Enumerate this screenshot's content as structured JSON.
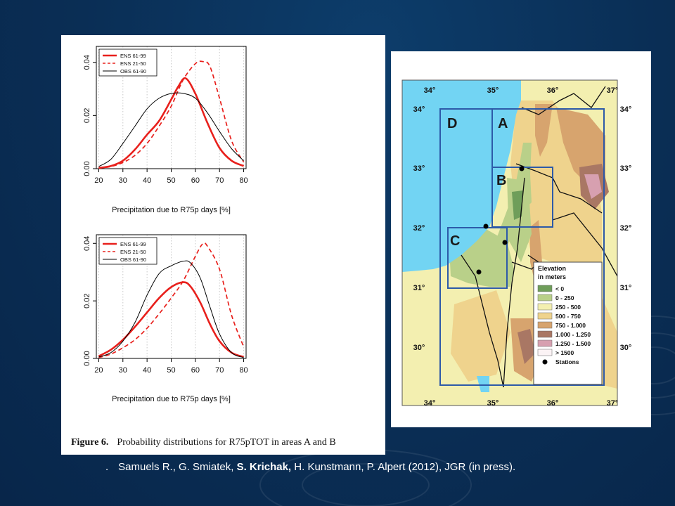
{
  "figure_caption": {
    "label": "Figure 6.",
    "text": "Probability distributions for R75pTOT in areas A and B"
  },
  "citation": {
    "dot": ".",
    "before": "Samuels R., G. Smiatek, ",
    "bold": "S. Krichak,",
    "after": " H. Kunstmann, P. Alpert (2012), JGR (in press)."
  },
  "chart_data": [
    {
      "type": "line",
      "title": "",
      "xlabel": "Precipitation due to R75p days [%]",
      "ylabel": "",
      "xlim": [
        19,
        81
      ],
      "ylim": [
        0,
        0.046
      ],
      "xticks": [
        "20",
        "30",
        "40",
        "50",
        "60",
        "70",
        "80"
      ],
      "yticks": [
        "0.00",
        "0.02",
        "0.04"
      ],
      "grid": "vertical-dotted",
      "legend": "top-left",
      "series": [
        {
          "name": "ENS 61-99",
          "color": "#e8201c",
          "style": "solid-thick",
          "x": [
            20,
            25,
            30,
            35,
            40,
            45,
            50,
            53,
            56,
            60,
            65,
            70,
            75,
            80
          ],
          "y": [
            0.0003,
            0.001,
            0.003,
            0.0072,
            0.0128,
            0.018,
            0.026,
            0.031,
            0.034,
            0.0282,
            0.0172,
            0.0078,
            0.003,
            0.001
          ]
        },
        {
          "name": "ENS 21-50",
          "color": "#e8201c",
          "style": "dashed",
          "x": [
            20,
            25,
            30,
            35,
            40,
            45,
            50,
            55,
            60,
            63,
            66,
            70,
            75,
            80
          ],
          "y": [
            0.0002,
            0.0008,
            0.0023,
            0.005,
            0.0095,
            0.016,
            0.0235,
            0.0335,
            0.0395,
            0.0403,
            0.0385,
            0.0265,
            0.0105,
            0.0025
          ]
        },
        {
          "name": "OBS 61-90",
          "color": "#000000",
          "style": "solid-thin",
          "x": [
            20,
            25,
            30,
            35,
            40,
            45,
            50,
            55,
            60,
            65,
            70,
            75,
            80
          ],
          "y": [
            0.0008,
            0.0035,
            0.0095,
            0.016,
            0.0225,
            0.0265,
            0.0283,
            0.0283,
            0.0265,
            0.021,
            0.014,
            0.0075,
            0.003
          ]
        }
      ]
    },
    {
      "type": "line",
      "title": "",
      "xlabel": "Precipitation due to R75p days [%]",
      "ylabel": "",
      "xlim": [
        19,
        81
      ],
      "ylim": [
        0,
        0.043
      ],
      "xticks": [
        "20",
        "30",
        "40",
        "50",
        "60",
        "70",
        "80"
      ],
      "yticks": [
        "0.00",
        "0.02",
        "0.04"
      ],
      "grid": "vertical-dotted",
      "legend": "top-left",
      "series": [
        {
          "name": "ENS 61-99",
          "color": "#e8201c",
          "style": "solid-thick",
          "x": [
            20,
            25,
            30,
            35,
            40,
            45,
            50,
            55,
            58,
            62,
            66,
            70,
            75,
            80
          ],
          "y": [
            0.0008,
            0.003,
            0.0065,
            0.011,
            0.016,
            0.021,
            0.0248,
            0.0265,
            0.025,
            0.0195,
            0.012,
            0.006,
            0.002,
            0.0005
          ]
        },
        {
          "name": "ENS 21-50",
          "color": "#e8201c",
          "style": "dashed",
          "x": [
            20,
            25,
            30,
            35,
            40,
            45,
            50,
            55,
            60,
            63,
            65,
            70,
            75,
            80
          ],
          "y": [
            0.0003,
            0.0015,
            0.0037,
            0.0065,
            0.0105,
            0.0155,
            0.021,
            0.027,
            0.0355,
            0.0398,
            0.039,
            0.031,
            0.015,
            0.004
          ]
        },
        {
          "name": "OBS 61-90",
          "color": "#000000",
          "style": "solid-thin",
          "x": [
            20,
            25,
            30,
            35,
            40,
            45,
            50,
            55,
            58,
            62,
            66,
            70,
            75,
            80
          ],
          "y": [
            0.0005,
            0.002,
            0.006,
            0.0125,
            0.022,
            0.0295,
            0.0322,
            0.0338,
            0.0332,
            0.028,
            0.018,
            0.0085,
            0.002,
            0.0003
          ]
        }
      ]
    }
  ],
  "map": {
    "lon_labels": [
      "34°",
      "35°",
      "36°",
      "37°"
    ],
    "lat_labels": [
      "34°",
      "33°",
      "32°",
      "31°",
      "30°"
    ],
    "region_labels": [
      "D",
      "A",
      "B",
      "C"
    ],
    "legend_title": [
      "Elevation",
      "in meters"
    ],
    "legend_items": [
      {
        "label": "< 0",
        "color": "#6f9e5a"
      },
      {
        "label": "0 - 250",
        "color": "#b9d089"
      },
      {
        "label": "250 - 500",
        "color": "#f3efb0"
      },
      {
        "label": "500 - 750",
        "color": "#efd38d"
      },
      {
        "label": "750 - 1.000",
        "color": "#d7a46e"
      },
      {
        "label": "1.000 - 1.250",
        "color": "#a97764"
      },
      {
        "label": "1.250 - 1.500",
        "color": "#d7a0b0"
      },
      {
        "label": "> 1500",
        "color": "#fbf3f5"
      }
    ],
    "stations_label": "Stations",
    "colors": {
      "sea": "#72d4f3",
      "frame": "#2d5aa8"
    }
  }
}
